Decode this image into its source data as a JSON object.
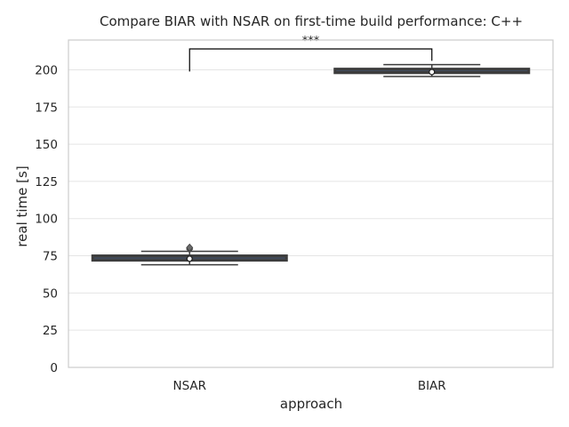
{
  "chart_data": {
    "type": "box",
    "title": "Compare BIAR with NSAR on first-time build performance: C++",
    "xlabel": "approach",
    "ylabel": "real time [s]",
    "ylim": [
      0,
      220
    ],
    "yticks": [
      0,
      25,
      50,
      75,
      100,
      125,
      150,
      175,
      200
    ],
    "grid": true,
    "categories": [
      "NSAR",
      "BIAR"
    ],
    "boxes": [
      {
        "category": "NSAR",
        "whisker_low": 69,
        "q1": 72,
        "median": 73.5,
        "q3": 75,
        "whisker_high": 78,
        "mean": 73,
        "outliers": [
          79.5,
          80.5
        ],
        "color": "#4c72b0"
      },
      {
        "category": "BIAR",
        "whisker_low": 195.5,
        "q1": 198,
        "median": 199,
        "q3": 200.5,
        "whisker_high": 203.5,
        "mean": 198.5,
        "outliers": [],
        "color": "#4c72b0"
      }
    ],
    "significance": {
      "from": "NSAR",
      "to": "BIAR",
      "label": "***",
      "y": 214,
      "y_low": 206
    }
  }
}
